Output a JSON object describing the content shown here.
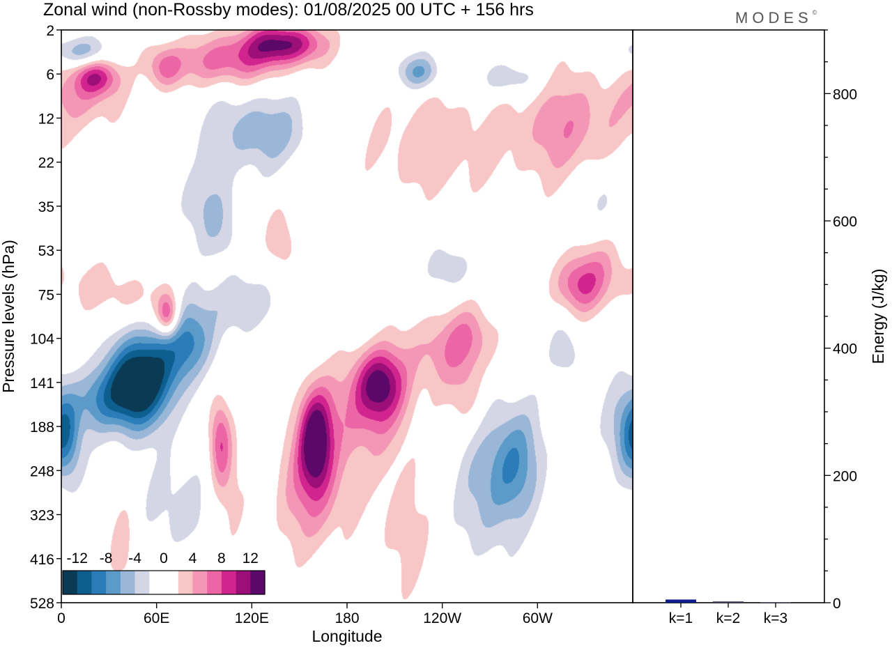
{
  "chart_data": {
    "type": "heatmap",
    "title": "Zonal wind (non-Rossby modes):  01/08/2025  00 UTC  + 156 hrs",
    "brand": "MODES",
    "brand_mark": "©",
    "xlabel": "Longitude",
    "ylabel": "Pressure levels (hPa)",
    "x_ticks": [
      "0",
      "60E",
      "120E",
      "180",
      "120W",
      "60W"
    ],
    "x_tick_values": [
      0,
      60,
      120,
      180,
      240,
      300
    ],
    "xlim": [
      0,
      360
    ],
    "y_ticks": [
      "2",
      "6",
      "12",
      "22",
      "35",
      "53",
      "75",
      "104",
      "141",
      "188",
      "248",
      "323",
      "416",
      "528"
    ],
    "colorbar": {
      "tick_labels": [
        "-12",
        "-8",
        "-4",
        "0",
        "4",
        "8",
        "12"
      ],
      "levels": [
        -14,
        -12,
        -10,
        -8,
        -6,
        -4,
        -2,
        0,
        2,
        4,
        6,
        8,
        10,
        12,
        14
      ],
      "colors": [
        "#0b3a55",
        "#0d5f8f",
        "#2a7db8",
        "#5c9bc9",
        "#9bb7d7",
        "#d4d6e6",
        "#ffffff",
        "#ffffff",
        "#f8c6c6",
        "#f497b6",
        "#ec66a6",
        "#d2248f",
        "#9c0f79",
        "#5c0868"
      ]
    },
    "fields": [
      {
        "lon": 45,
        "lev": 8.2,
        "v": -14,
        "sx": 13,
        "sy": 0.65
      },
      {
        "lon": 60,
        "lev": 7.5,
        "v": -8,
        "sx": 16,
        "sy": 0.7
      },
      {
        "lon": 82,
        "lev": 7.0,
        "v": -6,
        "sx": 11,
        "sy": 0.55
      },
      {
        "lon": 110,
        "lev": 6.2,
        "v": -3.5,
        "sx": 26,
        "sy": 0.45
      },
      {
        "lon": 3,
        "lev": 9.2,
        "v": -7.5,
        "sx": 7,
        "sy": 0.7
      },
      {
        "lon": 20,
        "lev": 8.4,
        "v": -5,
        "sx": 10,
        "sy": 0.5
      },
      {
        "lon": 125,
        "lev": 2.3,
        "v": -5.5,
        "sx": 24,
        "sy": 0.6
      },
      {
        "lon": 92,
        "lev": 3.9,
        "v": -3.5,
        "sx": 14,
        "sy": 0.6
      },
      {
        "lon": 225,
        "lev": 0.95,
        "v": -6.5,
        "sx": 10,
        "sy": 0.28
      },
      {
        "lon": 282,
        "lev": 1.1,
        "v": -4.5,
        "sx": 13,
        "sy": 0.3
      },
      {
        "lon": 12,
        "lev": 0.5,
        "v": -6,
        "sx": 12,
        "sy": 0.25
      },
      {
        "lon": 285,
        "lev": 9.8,
        "v": -7.5,
        "sx": 12,
        "sy": 0.95
      },
      {
        "lon": 265,
        "lev": 10.6,
        "v": -4,
        "sx": 12,
        "sy": 1.1
      },
      {
        "lon": 318,
        "lev": 7.3,
        "v": -3.5,
        "sx": 7,
        "sy": 0.45
      },
      {
        "lon": 355,
        "lev": 9.1,
        "v": -5,
        "sx": 9,
        "sy": 0.8
      },
      {
        "lon": 75,
        "lev": 10.8,
        "v": -3,
        "sx": 18,
        "sy": 0.9
      },
      {
        "lon": 100,
        "lev": 4.7,
        "v": -2.8,
        "sx": 8,
        "sy": 0.5
      },
      {
        "lon": 245,
        "lev": 5.4,
        "v": -3,
        "sx": 12,
        "sy": 0.4
      },
      {
        "lon": 340,
        "lev": 3.8,
        "v": -3,
        "sx": 10,
        "sy": 0.7
      },
      {
        "lon": 160,
        "lev": 9.3,
        "v": 11,
        "sx": 7,
        "sy": 0.75
      },
      {
        "lon": 200,
        "lev": 8.0,
        "v": 10.5,
        "sx": 11,
        "sy": 0.55
      },
      {
        "lon": 100,
        "lev": 9.3,
        "v": 7.5,
        "sx": 5,
        "sy": 0.7
      },
      {
        "lon": 158,
        "lev": 10.3,
        "v": 6,
        "sx": 17,
        "sy": 1.1
      },
      {
        "lon": 190,
        "lev": 8.7,
        "v": 5,
        "sx": 22,
        "sy": 0.8
      },
      {
        "lon": 238,
        "lev": 7.3,
        "v": 4.5,
        "sx": 18,
        "sy": 0.6
      },
      {
        "lon": 258,
        "lev": 6.9,
        "v": 4,
        "sx": 12,
        "sy": 0.5
      },
      {
        "lon": 215,
        "lev": 11.3,
        "v": 3,
        "sx": 12,
        "sy": 1.2
      },
      {
        "lon": 104,
        "lev": 10.5,
        "v": 3,
        "sx": 8,
        "sy": 0.9
      },
      {
        "lon": 67,
        "lev": 6.5,
        "v": 9,
        "sx": 5,
        "sy": 0.35
      },
      {
        "lon": 55,
        "lev": 6.2,
        "v": 3,
        "sx": 18,
        "sy": 0.45
      },
      {
        "lon": 22,
        "lev": 5.8,
        "v": 2.5,
        "sx": 16,
        "sy": 0.4
      },
      {
        "lon": 325,
        "lev": 5.8,
        "v": 6.5,
        "sx": 11,
        "sy": 0.45
      },
      {
        "lon": 340,
        "lev": 5.4,
        "v": 4,
        "sx": 14,
        "sy": 0.6
      },
      {
        "lon": 140,
        "lev": 0.3,
        "v": 11.5,
        "sx": 18,
        "sy": 0.32
      },
      {
        "lon": 105,
        "lev": 0.7,
        "v": 7,
        "sx": 24,
        "sy": 0.4
      },
      {
        "lon": 22,
        "lev": 1.05,
        "v": 9,
        "sx": 10,
        "sy": 0.3
      },
      {
        "lon": 65,
        "lev": 0.85,
        "v": 6,
        "sx": 8,
        "sy": 0.35
      },
      {
        "lon": 14,
        "lev": 1.6,
        "v": 4,
        "sx": 16,
        "sy": 0.5
      },
      {
        "lon": 235,
        "lev": 2.6,
        "v": 3.5,
        "sx": 32,
        "sy": 0.9
      },
      {
        "lon": 320,
        "lev": 2.2,
        "v": 5.5,
        "sx": 24,
        "sy": 0.9
      },
      {
        "lon": 136,
        "lev": 4.7,
        "v": 3,
        "sx": 8,
        "sy": 0.6
      },
      {
        "lon": 40,
        "lev": 11.8,
        "v": 3,
        "sx": 7,
        "sy": 0.9
      },
      {
        "lon": 255,
        "lev": 8.3,
        "v": 3,
        "sx": 8,
        "sy": 0.6
      }
    ],
    "energy_axis": {
      "label": "Energy (J/kg)",
      "ticks": [
        "0",
        "200",
        "400",
        "600",
        "800"
      ],
      "tick_values": [
        0,
        200,
        400,
        600,
        800
      ],
      "ylim": [
        0,
        900
      ]
    },
    "energy_bars": {
      "categories": [
        "k=1",
        "k=2",
        "k=3"
      ],
      "values": [
        5,
        2,
        1
      ],
      "colors": [
        "#101c8c",
        "#404060",
        "#606070"
      ]
    }
  }
}
